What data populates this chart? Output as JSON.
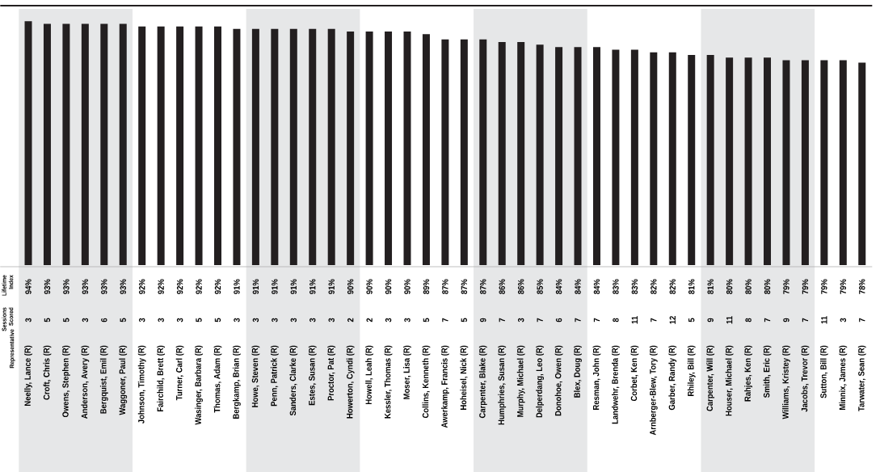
{
  "chart_data": {
    "type": "bar",
    "categories": [
      "Neelly, Lance (R)",
      "Croft, Chris (R)",
      "Owens, Stephen (R)",
      "Anderson, Avery (R)",
      "Bergquist, Emil (R)",
      "Waggoner, Paul (R)",
      "Johnson, Timothy (R)",
      "Fairchild, Brett (R)",
      "Turner, Carl (R)",
      "Wasinger, Barbara (R)",
      "Thomas, Adam (R)",
      "Bergkamp, Brian (R)",
      "Howe, Steven (R)",
      "Penn, Patrick (R)",
      "Sanders, Clarke (R)",
      "Estes, Susan (R)",
      "Proctor, Pat (R)",
      "Howerton, Cyndi (R)",
      "Howell, Leah (R)",
      "Kessler, Thomas (R)",
      "Moser, Lisa (R)",
      "Collins, Kenneth (R)",
      "Awerkamp, Francis (R)",
      "Hoheisel, Nick (R)",
      "Carpenter, Blake (R)",
      "Humphries, Susan (R)",
      "Murphy, Michael (R)",
      "Delperdang, Leo (R)",
      "Donohoe, Owen (R)",
      "Blex, Doug (R)",
      "Resman, John (R)",
      "Landwehr, Brenda (R)",
      "Corbet, Ken (R)",
      "Arnberger-Blew, Tory (R)",
      "Garber, Randy (R)",
      "Rhiley, Bill (R)",
      "Carpenter, Will (R)",
      "Houser, Michael (R)",
      "Rahjes, Ken (R)",
      "Smith, Eric (R)",
      "Williams, Kristey (R)",
      "Jacobs, Trevor (R)",
      "Sutton, Bill (R)",
      "Minnix, James (R)",
      "Tarwater, Sean (R)"
    ],
    "values": [
      94,
      93,
      93,
      93,
      93,
      93,
      92,
      92,
      92,
      92,
      92,
      91,
      91,
      91,
      91,
      91,
      91,
      90,
      90,
      90,
      90,
      89,
      87,
      87,
      87,
      86,
      86,
      85,
      84,
      84,
      84,
      83,
      83,
      82,
      82,
      81,
      81,
      80,
      80,
      80,
      79,
      79,
      79,
      79,
      78
    ],
    "value_labels": [
      "94%",
      "93%",
      "93%",
      "93%",
      "93%",
      "93%",
      "92%",
      "92%",
      "92%",
      "92%",
      "92%",
      "91%",
      "91%",
      "91%",
      "91%",
      "91%",
      "91%",
      "90%",
      "90%",
      "90%",
      "90%",
      "89%",
      "87%",
      "87%",
      "87%",
      "86%",
      "86%",
      "85%",
      "84%",
      "84%",
      "84%",
      "83%",
      "83%",
      "82%",
      "82%",
      "81%",
      "81%",
      "80%",
      "80%",
      "80%",
      "79%",
      "79%",
      "79%",
      "79%",
      "78%"
    ],
    "color": "#231f20",
    "ylim": [
      0,
      100
    ],
    "tick_labels": "x",
    "bands": [
      {
        "axis": "x",
        "from": "Neelly, Lance (R)",
        "to": "Waggoner, Paul (R)",
        "color": "#e6e7e8"
      },
      {
        "axis": "x",
        "from": "Howe, Steven (R)",
        "to": "Howerton, Cyndi (R)",
        "color": "#e6e7e8"
      },
      {
        "axis": "x",
        "from": "Carpenter, Blake (R)",
        "to": "Blex, Doug (R)",
        "color": "#e6e7e8"
      },
      {
        "axis": "x",
        "from": "Carpenter, Will (R)",
        "to": "Jacobs, Trevor (R)",
        "color": "#e6e7e8"
      }
    ],
    "annotations": [
      "Lifetime Index",
      "Sessions Scored",
      "Representative",
      "3",
      "5",
      "5",
      "3",
      "6",
      "5",
      "3",
      "3",
      "3",
      "5",
      "5",
      "3",
      "3",
      "3",
      "3",
      "3",
      "3",
      "2",
      "2",
      "3",
      "3",
      "5",
      "7",
      "5",
      "9",
      "7",
      "3",
      "7",
      "6",
      "7",
      "7",
      "8",
      "11",
      "7",
      "12",
      "5",
      "9",
      "11",
      "8",
      "7",
      "9",
      "7",
      "11",
      "3",
      "7"
    ]
  }
}
